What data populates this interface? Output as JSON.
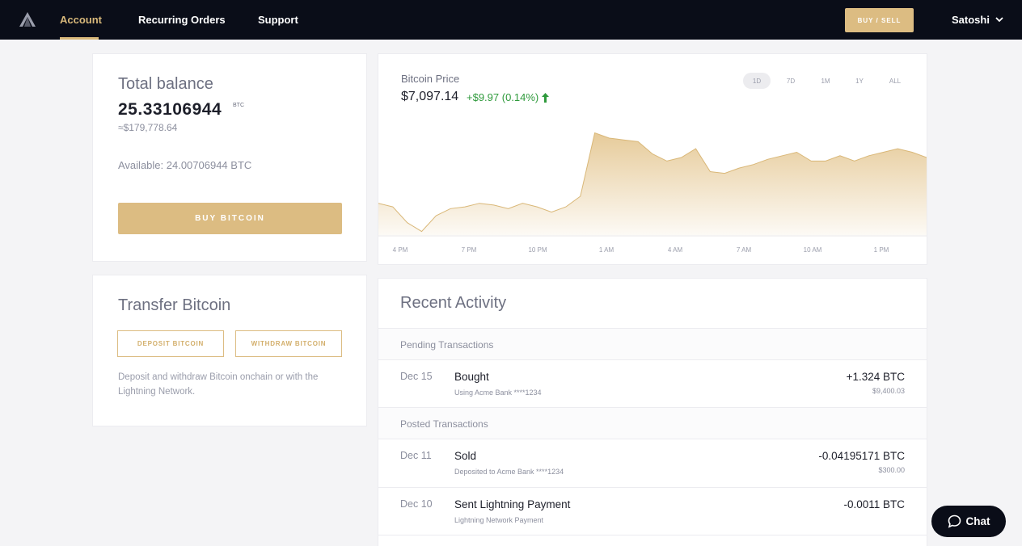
{
  "nav": {
    "items": [
      {
        "label": "Account",
        "active": true
      },
      {
        "label": "Recurring Orders",
        "active": false
      },
      {
        "label": "Support",
        "active": false
      }
    ],
    "buy_sell_label": "BUY / SELL",
    "user_name": "Satoshi",
    "logo_icon": "mountain-logo-icon"
  },
  "balance": {
    "title": "Total balance",
    "amount": "25.33106944",
    "unit": "BTC",
    "fiat": "≈$179,778.64",
    "available": "Available: 24.00706944 BTC",
    "buy_label": "BUY BITCOIN"
  },
  "transfer": {
    "title": "Transfer Bitcoin",
    "deposit_label": "DEPOSIT BITCOIN",
    "withdraw_label": "WITHDRAW BITCOIN",
    "description": "Deposit and withdraw Bitcoin onchain or with the Lightning Network."
  },
  "price_chart": {
    "label": "Bitcoin Price",
    "price": "$7,097.14",
    "change": "+$9.97 (0.14%)",
    "change_color": "#2f9a3c",
    "ranges": [
      {
        "label": "1D",
        "active": true
      },
      {
        "label": "7D",
        "active": false
      },
      {
        "label": "1M",
        "active": false
      },
      {
        "label": "1Y",
        "active": false
      },
      {
        "label": "ALL",
        "active": false
      }
    ]
  },
  "chart_data": {
    "type": "area",
    "title": "Bitcoin Price",
    "xlabel": "",
    "ylabel": "",
    "x_ticks": [
      "4 PM",
      "7 PM",
      "10 PM",
      "1 AM",
      "4 AM",
      "7 AM",
      "10 AM",
      "1 PM"
    ],
    "series": [
      {
        "values": [
          6960,
          6950,
          6905,
          6880,
          6925,
          6945,
          6950,
          6960,
          6955,
          6945,
          6960,
          6950,
          6935,
          6950,
          6980,
          7160,
          7145,
          7140,
          7135,
          7100,
          7080,
          7090,
          7115,
          7050,
          7045,
          7060,
          7070,
          7085,
          7095,
          7105,
          7080,
          7080,
          7095,
          7080,
          7095,
          7105,
          7115,
          7105,
          7090
        ]
      }
    ],
    "ylim": [
      6870,
      7200
    ],
    "grid": false,
    "fill_color": "#e5c894"
  },
  "activity": {
    "title": "Recent Activity",
    "pending_header": "Pending Transactions",
    "posted_header": "Posted Transactions",
    "pending": [
      {
        "date": "Dec 15",
        "title": "Bought",
        "sub": "Using Acme Bank ****1234",
        "amount": "+1.324 BTC",
        "fiat": "$9,400.03"
      }
    ],
    "posted": [
      {
        "date": "Dec 11",
        "title": "Sold",
        "sub": "Deposited to Acme Bank ****1234",
        "amount": "-0.04195171 BTC",
        "fiat": "$300.00"
      },
      {
        "date": "Dec 10",
        "title": "Sent Lightning Payment",
        "sub": "Lightning Network Payment",
        "amount": "-0.0011 BTC",
        "fiat": ""
      }
    ]
  },
  "chat": {
    "label": "Chat",
    "icon": "chat-bubble-icon"
  },
  "colors": {
    "accent": "#dcbc82",
    "nav_bg": "#0a0d18",
    "positive": "#2f9a3c"
  }
}
